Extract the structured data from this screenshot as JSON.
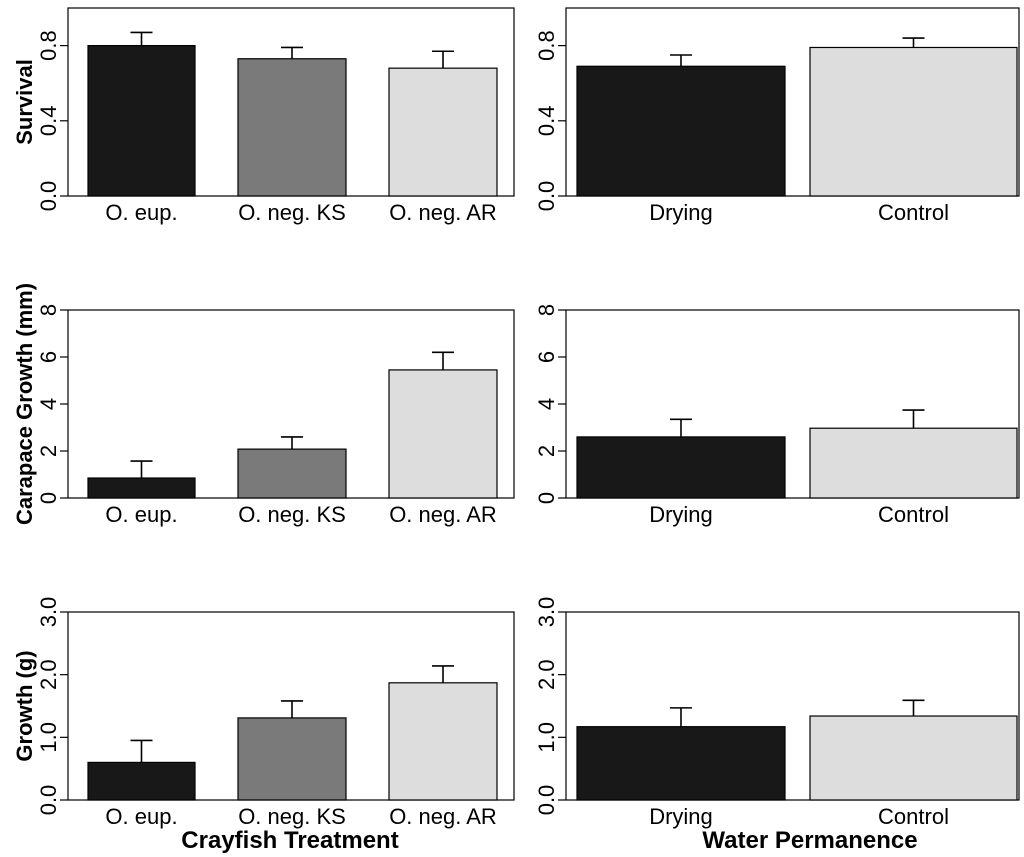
{
  "colors": {
    "black_bar": "#181818",
    "gray_bar": "#7a7a7a",
    "light_bar": "#dddddd"
  },
  "shared_labels": {
    "left_xlabel": "Crayfish Treatment",
    "right_xlabel": "Water Permanence"
  },
  "chart_data": [
    {
      "id": "survival-treatment",
      "type": "bar",
      "ylabel": "Survival",
      "categories": [
        "O. eup.",
        "O. neg. KS",
        "O. neg. AR"
      ],
      "values": [
        0.8,
        0.73,
        0.68
      ],
      "errors": [
        0.07,
        0.06,
        0.09
      ],
      "bar_colors": [
        "#181818",
        "#7a7a7a",
        "#dddddd"
      ],
      "ylim": [
        0,
        1.0
      ],
      "yticks": [
        0,
        0.4,
        0.8
      ],
      "ytick_labels": [
        "0.0",
        "0.4",
        "0.8"
      ]
    },
    {
      "id": "survival-water",
      "type": "bar",
      "ylabel": "",
      "categories": [
        "Drying",
        "Control"
      ],
      "values": [
        0.69,
        0.79
      ],
      "errors": [
        0.06,
        0.05
      ],
      "bar_colors": [
        "#181818",
        "#dddddd"
      ],
      "ylim": [
        0,
        1.0
      ],
      "yticks": [
        0,
        0.4,
        0.8
      ],
      "ytick_labels": [
        "0.0",
        "0.4",
        "0.8"
      ]
    },
    {
      "id": "carapace-treatment",
      "type": "bar",
      "ylabel": "Carapace Growth (mm)",
      "categories": [
        "O. eup.",
        "O. neg. KS",
        "O. neg. AR"
      ],
      "values": [
        0.85,
        2.08,
        5.45
      ],
      "errors": [
        0.72,
        0.52,
        0.75
      ],
      "bar_colors": [
        "#181818",
        "#7a7a7a",
        "#dddddd"
      ],
      "ylim": [
        0,
        8
      ],
      "yticks": [
        0,
        2,
        4,
        6,
        8
      ],
      "ytick_labels": [
        "0",
        "2",
        "4",
        "6",
        "8"
      ]
    },
    {
      "id": "carapace-water",
      "type": "bar",
      "ylabel": "",
      "categories": [
        "Drying",
        "Control"
      ],
      "values": [
        2.6,
        2.97
      ],
      "errors": [
        0.75,
        0.77
      ],
      "bar_colors": [
        "#181818",
        "#dddddd"
      ],
      "ylim": [
        0,
        8
      ],
      "yticks": [
        0,
        2,
        4,
        6,
        8
      ],
      "ytick_labels": [
        "0",
        "2",
        "4",
        "6",
        "8"
      ]
    },
    {
      "id": "mass-treatment",
      "type": "bar",
      "ylabel": "Growth (g)",
      "categories": [
        "O. eup.",
        "O. neg. KS",
        "O. neg. AR"
      ],
      "values": [
        0.6,
        1.31,
        1.87
      ],
      "errors": [
        0.35,
        0.27,
        0.27
      ],
      "bar_colors": [
        "#181818",
        "#7a7a7a",
        "#dddddd"
      ],
      "ylim": [
        0,
        3.0
      ],
      "yticks": [
        0,
        1.0,
        2.0,
        3.0
      ],
      "ytick_labels": [
        "0.0",
        "1.0",
        "2.0",
        "3.0"
      ]
    },
    {
      "id": "mass-water",
      "type": "bar",
      "ylabel": "",
      "categories": [
        "Drying",
        "Control"
      ],
      "values": [
        1.17,
        1.34
      ],
      "errors": [
        0.3,
        0.25
      ],
      "bar_colors": [
        "#181818",
        "#dddddd"
      ],
      "ylim": [
        0,
        3.0
      ],
      "yticks": [
        0,
        1.0,
        2.0,
        3.0
      ],
      "ytick_labels": [
        "0.0",
        "1.0",
        "2.0",
        "3.0"
      ]
    }
  ]
}
